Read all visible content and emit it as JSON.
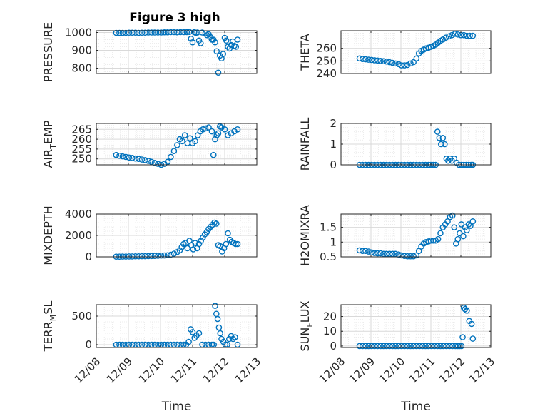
{
  "figure_title": "Figure 3 high",
  "marker_color": "#0072BD",
  "x_ticks": [
    "12/08",
    "12/09",
    "12/10",
    "12/11",
    "12/12",
    "12/13"
  ],
  "x_label": "Time",
  "chart_data": [
    {
      "type": "scatter",
      "ylabel": "PRESSURE",
      "ylim": [
        770,
        1010
      ],
      "yticks": [
        "1000",
        "900",
        "800"
      ],
      "ytick_values": [
        1000,
        900,
        800
      ],
      "xlim": [
        0,
        5
      ],
      "grid": true,
      "x": [
        0.62,
        0.72,
        0.82,
        0.92,
        1.02,
        1.12,
        1.22,
        1.32,
        1.42,
        1.52,
        1.62,
        1.72,
        1.82,
        1.92,
        2.02,
        2.12,
        2.22,
        2.32,
        2.42,
        2.52,
        2.62,
        2.72,
        2.82,
        2.9,
        2.95,
        3.0,
        3.05,
        3.1,
        3.15,
        3.2,
        3.25,
        3.3,
        3.4,
        3.45,
        3.5,
        3.55,
        3.6,
        3.65,
        3.7,
        3.75,
        3.8,
        3.85,
        3.9,
        3.95,
        4.0,
        4.05,
        4.1,
        4.15,
        4.2,
        4.25,
        4.3,
        4.35,
        4.4
      ],
      "y": [
        998,
        998,
        998,
        998,
        999,
        999,
        999,
        998,
        999,
        999,
        1000,
        1000,
        1000,
        1000,
        1000,
        1001,
        1001,
        1002,
        1002,
        1001,
        1002,
        1002,
        1002,
        1003,
        965,
        945,
        1002,
        998,
        1000,
        955,
        940,
        1000,
        995,
        985,
        990,
        975,
        960,
        960,
        945,
        895,
        775,
        870,
        855,
        880,
        970,
        955,
        920,
        910,
        930,
        950,
        925,
        920,
        960
      ]
    },
    {
      "type": "scatter",
      "ylabel": "THETA",
      "ylim": [
        240,
        274
      ],
      "yticks": [
        "260",
        "250",
        "240"
      ],
      "ytick_values": [
        260,
        250,
        240
      ],
      "xlim": [
        0,
        5
      ],
      "grid": true,
      "x": [
        0.62,
        0.72,
        0.82,
        0.92,
        1.02,
        1.12,
        1.22,
        1.32,
        1.42,
        1.52,
        1.62,
        1.72,
        1.82,
        1.92,
        2.02,
        2.12,
        2.22,
        2.32,
        2.42,
        2.52,
        2.6,
        2.68,
        2.76,
        2.84,
        2.92,
        3.0,
        3.08,
        3.16,
        3.24,
        3.32,
        3.4,
        3.5,
        3.6,
        3.7,
        3.8,
        3.9,
        4.0,
        4.1,
        4.2,
        4.3,
        4.4
      ],
      "y": [
        252,
        251.5,
        251.3,
        251,
        250.8,
        250.5,
        250.3,
        250,
        249.8,
        249.5,
        249,
        248.5,
        248,
        247.5,
        246.5,
        246.5,
        246.8,
        248,
        249,
        252,
        256,
        258,
        259,
        260,
        260.5,
        261.2,
        262,
        263,
        264.5,
        266,
        267,
        268.5,
        269.5,
        270.5,
        271.5,
        271,
        270.5,
        270.5,
        270,
        270,
        270
      ]
    },
    {
      "type": "scatter",
      "ylabel": "AIR_TEMP",
      "ylim": [
        247,
        268
      ],
      "yticks": [
        "265",
        "260",
        "255",
        "250"
      ],
      "ytick_values": [
        265,
        260,
        255,
        250
      ],
      "xlim": [
        0,
        5
      ],
      "grid": true,
      "x": [
        0.62,
        0.72,
        0.82,
        0.92,
        1.02,
        1.12,
        1.22,
        1.32,
        1.42,
        1.52,
        1.62,
        1.72,
        1.82,
        1.92,
        2.02,
        2.12,
        2.22,
        2.32,
        2.42,
        2.52,
        2.6,
        2.68,
        2.76,
        2.84,
        2.92,
        3.0,
        3.08,
        3.16,
        3.24,
        3.32,
        3.4,
        3.5,
        3.6,
        3.65,
        3.7,
        3.75,
        3.8,
        3.85,
        3.9,
        4.0,
        4.1,
        4.2,
        4.3,
        4.4
      ],
      "y": [
        252,
        251.6,
        251.3,
        251,
        250.7,
        250.5,
        250.2,
        250,
        249.7,
        249.4,
        249,
        248.5,
        248,
        247.5,
        247,
        247.5,
        248.5,
        251,
        254,
        257,
        260,
        259,
        262,
        258,
        260.5,
        258,
        259,
        262,
        264,
        265,
        265.5,
        266,
        264,
        252,
        260,
        262,
        263,
        266.5,
        266,
        265,
        262,
        263,
        264,
        265
      ]
    },
    {
      "type": "scatter",
      "ylabel": "RAINFALL",
      "ylim": [
        0,
        2
      ],
      "yticks": [
        "2",
        "1",
        "0"
      ],
      "ytick_values": [
        2,
        1,
        0
      ],
      "xlim": [
        0,
        5
      ],
      "grid": true,
      "x": [
        0.62,
        0.72,
        0.82,
        0.92,
        1.02,
        1.12,
        1.22,
        1.32,
        1.42,
        1.52,
        1.62,
        1.72,
        1.82,
        1.92,
        2.02,
        2.12,
        2.22,
        2.32,
        2.42,
        2.52,
        2.62,
        2.72,
        2.82,
        2.92,
        3.0,
        3.08,
        3.16,
        3.22,
        3.28,
        3.34,
        3.4,
        3.46,
        3.52,
        3.58,
        3.64,
        3.7,
        3.78,
        3.86,
        3.94,
        4.02,
        4.1,
        4.18,
        4.26,
        4.34,
        4.4
      ],
      "y": [
        0,
        0,
        0,
        0,
        0,
        0,
        0,
        0,
        0,
        0,
        0,
        0,
        0,
        0,
        0,
        0,
        0,
        0,
        0,
        0,
        0,
        0,
        0,
        0,
        0,
        0,
        0,
        1.6,
        1.3,
        1.0,
        1.3,
        1.0,
        0.3,
        0.2,
        0.3,
        0.2,
        0.3,
        0.1,
        0,
        0,
        0,
        0,
        0,
        0,
        0
      ]
    },
    {
      "type": "scatter",
      "ylabel": "MIXDEPTH",
      "ylim": [
        0,
        4000
      ],
      "yticks": [
        "4000",
        "2000",
        "0"
      ],
      "ytick_values": [
        4000,
        2000,
        0
      ],
      "xlim": [
        0,
        5
      ],
      "grid": true,
      "x": [
        0.62,
        0.72,
        0.82,
        0.92,
        1.02,
        1.12,
        1.22,
        1.32,
        1.42,
        1.52,
        1.62,
        1.72,
        1.82,
        1.92,
        2.02,
        2.12,
        2.22,
        2.32,
        2.42,
        2.52,
        2.6,
        2.66,
        2.72,
        2.78,
        2.84,
        2.9,
        2.96,
        3.02,
        3.08,
        3.14,
        3.2,
        3.26,
        3.32,
        3.38,
        3.44,
        3.5,
        3.56,
        3.62,
        3.68,
        3.74,
        3.8,
        3.86,
        3.92,
        3.98,
        4.04,
        4.1,
        4.16,
        4.22,
        4.28,
        4.34,
        4.4
      ],
      "y": [
        20,
        20,
        30,
        30,
        40,
        40,
        50,
        50,
        60,
        60,
        70,
        80,
        90,
        100,
        120,
        130,
        150,
        200,
        300,
        450,
        600,
        900,
        1200,
        1300,
        800,
        1500,
        1100,
        700,
        1300,
        800,
        1200,
        1500,
        1800,
        2100,
        2300,
        2600,
        2800,
        3000,
        3200,
        3100,
        1100,
        1000,
        500,
        800,
        1200,
        2200,
        1600,
        1400,
        1300,
        1200,
        1200
      ]
    },
    {
      "type": "scatter",
      "ylabel": "H2OMIXRA",
      "ylim": [
        0.5,
        1.95
      ],
      "yticks": [
        "1.5",
        "1",
        "0.5"
      ],
      "ytick_values": [
        1.5,
        1,
        0.5
      ],
      "xlim": [
        0,
        5
      ],
      "grid": true,
      "x": [
        0.62,
        0.72,
        0.82,
        0.92,
        1.02,
        1.12,
        1.22,
        1.32,
        1.42,
        1.52,
        1.62,
        1.72,
        1.82,
        1.92,
        2.02,
        2.12,
        2.22,
        2.32,
        2.42,
        2.52,
        2.6,
        2.68,
        2.76,
        2.84,
        2.92,
        3.0,
        3.08,
        3.16,
        3.24,
        3.32,
        3.4,
        3.48,
        3.56,
        3.64,
        3.72,
        3.78,
        3.84,
        3.9,
        3.96,
        4.02,
        4.08,
        4.14,
        4.2,
        4.26,
        4.32,
        4.4
      ],
      "y": [
        0.72,
        0.7,
        0.7,
        0.68,
        0.65,
        0.63,
        0.62,
        0.62,
        0.6,
        0.6,
        0.6,
        0.6,
        0.6,
        0.58,
        0.55,
        0.53,
        0.52,
        0.52,
        0.52,
        0.55,
        0.7,
        0.85,
        0.95,
        1.0,
        1.02,
        1.05,
        1.05,
        1.05,
        1.1,
        1.3,
        1.5,
        1.6,
        1.7,
        1.85,
        1.9,
        1.5,
        0.95,
        1.1,
        1.3,
        1.6,
        1.2,
        1.5,
        1.4,
        1.6,
        1.55,
        1.7
      ]
    },
    {
      "type": "scatter",
      "ylabel": "TERR_MSL",
      "ylim": [
        -50,
        700
      ],
      "yticks": [
        "500",
        "0"
      ],
      "ytick_values": [
        500,
        0
      ],
      "xlim": [
        0,
        5
      ],
      "grid": true,
      "x": [
        0.62,
        0.72,
        0.82,
        0.92,
        1.02,
        1.12,
        1.22,
        1.32,
        1.42,
        1.52,
        1.62,
        1.72,
        1.82,
        1.92,
        2.02,
        2.12,
        2.22,
        2.32,
        2.42,
        2.52,
        2.62,
        2.72,
        2.8,
        2.88,
        2.94,
        3.0,
        3.06,
        3.12,
        3.2,
        3.3,
        3.4,
        3.5,
        3.6,
        3.66,
        3.7,
        3.74,
        3.78,
        3.82,
        3.86,
        3.9,
        3.96,
        4.02,
        4.08,
        4.14,
        4.2,
        4.26,
        4.32,
        4.4
      ],
      "y": [
        0,
        0,
        0,
        0,
        0,
        0,
        0,
        0,
        0,
        0,
        0,
        0,
        0,
        0,
        0,
        0,
        0,
        0,
        0,
        0,
        0,
        0,
        0,
        50,
        270,
        220,
        120,
        160,
        200,
        0,
        0,
        0,
        0,
        0,
        680,
        540,
        450,
        300,
        200,
        100,
        50,
        0,
        0,
        100,
        150,
        100,
        130,
        0
      ]
    },
    {
      "type": "scatter",
      "ylabel": "SUN_FLUX",
      "ylim": [
        -1,
        28
      ],
      "yticks": [
        "20",
        "10",
        "0"
      ],
      "ytick_values": [
        20,
        10,
        0
      ],
      "xlim": [
        0,
        5
      ],
      "grid": true,
      "x": [
        0.62,
        0.72,
        0.82,
        0.92,
        1.02,
        1.12,
        1.22,
        1.32,
        1.42,
        1.52,
        1.62,
        1.72,
        1.82,
        1.92,
        2.02,
        2.12,
        2.22,
        2.32,
        2.42,
        2.52,
        2.62,
        2.72,
        2.82,
        2.92,
        3.02,
        3.12,
        3.22,
        3.32,
        3.42,
        3.52,
        3.62,
        3.72,
        3.82,
        3.9,
        3.96,
        4.02,
        4.06,
        4.1,
        4.14,
        4.2,
        4.28,
        4.36,
        4.4
      ],
      "y": [
        0,
        0,
        0,
        0,
        0,
        0,
        0,
        0,
        0,
        0,
        0,
        0,
        0,
        0,
        0,
        0,
        0,
        0,
        0,
        0,
        0,
        0,
        0,
        0,
        0,
        0,
        0,
        0,
        0,
        0,
        0,
        0,
        0,
        0,
        0,
        0,
        6,
        26,
        25,
        24,
        17,
        15,
        5
      ]
    }
  ]
}
